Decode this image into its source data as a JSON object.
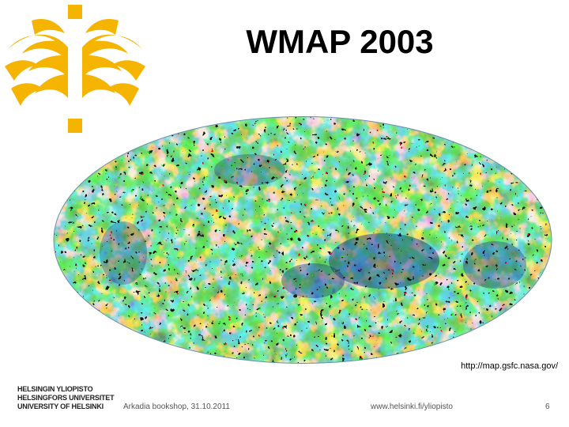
{
  "slide": {
    "title": "WMAP 2003",
    "source_url": "http://map.gsfc.nasa.gov/"
  },
  "footer": {
    "logo_lines": [
      "HELSINGIN YLIOPISTO",
      "HELSINGFORS UNIVERSITET",
      "UNIVERSITY OF HELSINKI"
    ],
    "event": "Arkadia bookshop, 31.10.2011",
    "website": "www.helsinki.fi/yliopisto",
    "page_number": "6"
  },
  "colors": {
    "brand_yellow": "#f5b400",
    "map_deep_blue": "#0a2a86",
    "map_blue": "#1f62c4",
    "map_cyan": "#1ea5c0",
    "map_green": "#3aa84a",
    "map_yellow": "#f2e01a",
    "map_red": "#d32a1a"
  },
  "icons": {
    "university_logo": "helsinki-flame-logo"
  }
}
